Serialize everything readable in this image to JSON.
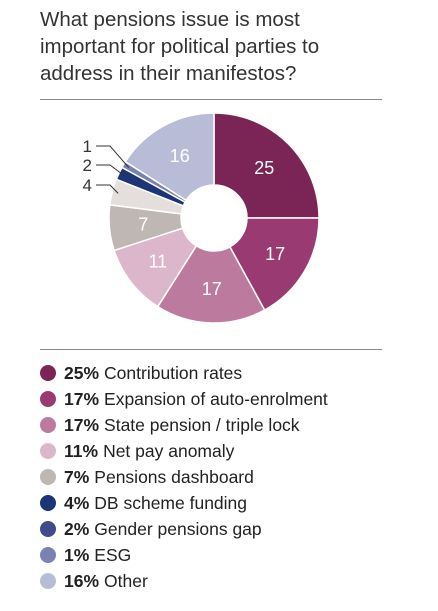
{
  "title": "What pensions issue is most\nimportant for political parties to\naddress in their manifestos?",
  "chart_data": {
    "type": "pie",
    "title": "What pensions issue is most important for political parties to address in their manifestos?",
    "unit": "%",
    "donut": true,
    "start": "12 o'clock, clockwise",
    "legend_position": "bottom",
    "slices": [
      {
        "label": "Contribution rates",
        "value": 25,
        "color": "#7b2456",
        "text_color": "#ffffff",
        "slice_label": "25"
      },
      {
        "label": "Expansion of auto-enrolment",
        "value": 17,
        "color": "#9a3a73",
        "text_color": "#ffffff",
        "slice_label": "17"
      },
      {
        "label": "State pension / triple lock",
        "value": 17,
        "color": "#bd7a9f",
        "text_color": "#ffffff",
        "slice_label": "17"
      },
      {
        "label": "Net pay anomaly",
        "value": 11,
        "color": "#dcb7cb",
        "text_color": "#ffffff",
        "slice_label": "11"
      },
      {
        "label": "Pensions dashboard",
        "value": 7,
        "color": "#bfb7b4",
        "text_color": "#ffffff",
        "slice_label": "7"
      },
      {
        "label": "DB scheme funding",
        "value": 4,
        "color": "#e4dfdc",
        "text_color": "#333333",
        "slice_label": "4"
      },
      {
        "label": "Gender pensions gap",
        "value": 2,
        "color": "#1c3577",
        "text_color": "#333333",
        "slice_label": "2"
      },
      {
        "label": "ESG",
        "value": 1,
        "color": "#7b81b0",
        "text_color": "#333333",
        "slice_label": "1"
      },
      {
        "label": "Other",
        "value": 16,
        "color": "#b8bcd6",
        "text_color": "#ffffff",
        "slice_label": "16"
      }
    ]
  },
  "legend": [
    {
      "pct": "25%",
      "label": "Contribution rates",
      "color": "#7b2456"
    },
    {
      "pct": "17%",
      "label": "Expansion of auto-enrolment",
      "color": "#9a3a73"
    },
    {
      "pct": "17%",
      "label": "State pension / triple lock",
      "color": "#bd7a9f"
    },
    {
      "pct": "11%",
      "label": "Net pay anomaly",
      "color": "#dcb7cb"
    },
    {
      "pct": "7%",
      "label": "Pensions dashboard",
      "color": "#bfb7b4"
    },
    {
      "pct": "4%",
      "label": "DB scheme funding",
      "color": "#1c3577"
    },
    {
      "pct": "2%",
      "label": "Gender pensions gap",
      "color": "#3f4c8c"
    },
    {
      "pct": "1%",
      "label": "ESG",
      "color": "#7b81b0"
    },
    {
      "pct": "16%",
      "label": "Other",
      "color": "#b8bcd6"
    }
  ]
}
